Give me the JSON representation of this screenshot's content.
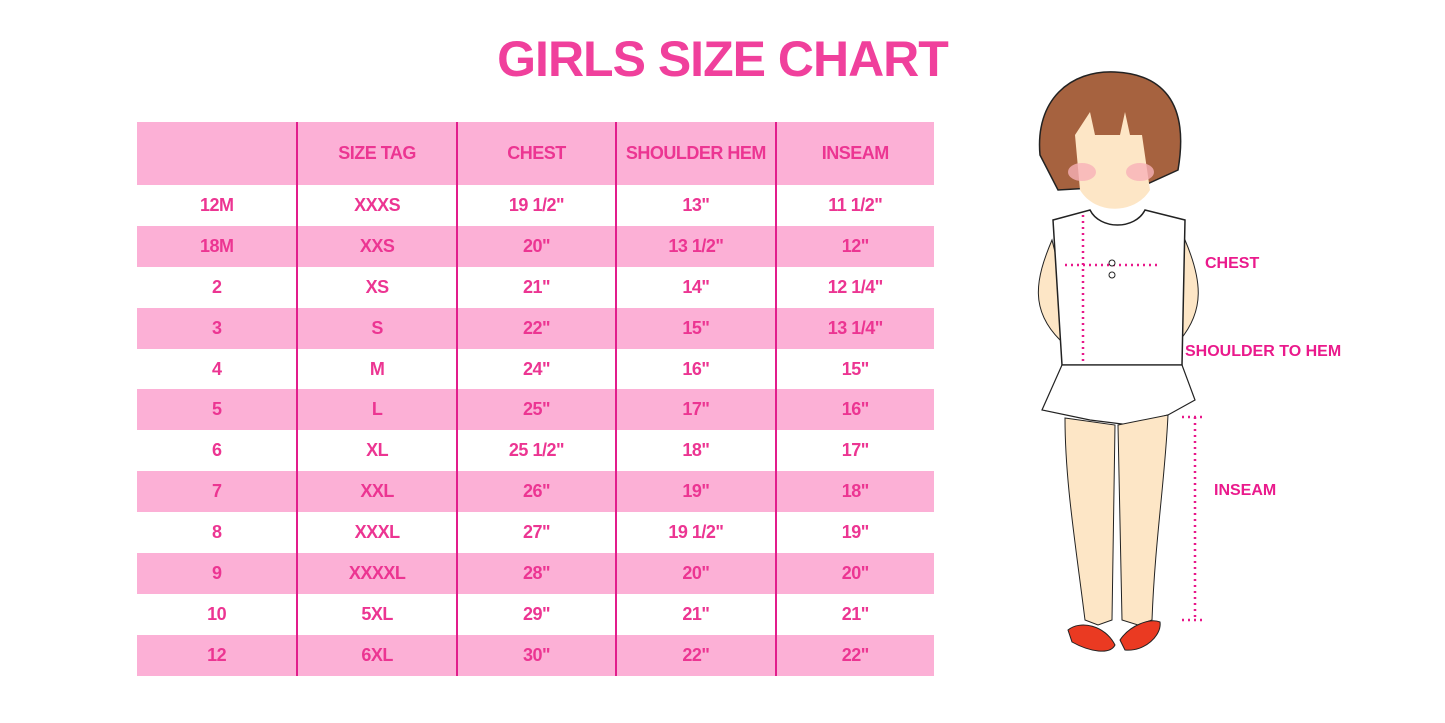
{
  "title": "GIRLS SIZE CHART",
  "table": {
    "headers": [
      "",
      "SIZE TAG",
      "CHEST",
      "SHOULDER HEM",
      "INSEAM"
    ],
    "rows": [
      [
        "12M",
        "XXXS",
        "19 1/2\"",
        "13\"",
        "11 1/2\""
      ],
      [
        "18M",
        "XXS",
        "20\"",
        "13 1/2\"",
        "12\""
      ],
      [
        "2",
        "XS",
        "21\"",
        "14\"",
        "12 1/4\""
      ],
      [
        "3",
        "S",
        "22\"",
        "15\"",
        "13 1/4\""
      ],
      [
        "4",
        "M",
        "24\"",
        "16\"",
        "15\""
      ],
      [
        "5",
        "L",
        "25\"",
        "17\"",
        "16\""
      ],
      [
        "6",
        "XL",
        "25 1/2\"",
        "18\"",
        "17\""
      ],
      [
        "7",
        "XXL",
        "26\"",
        "19\"",
        "18\""
      ],
      [
        "8",
        "XXXL",
        "27\"",
        "19 1/2\"",
        "19\""
      ],
      [
        "9",
        "XXXXL",
        "28\"",
        "20\"",
        "20\""
      ],
      [
        "10",
        "5XL",
        "29\"",
        "21\"",
        "21\""
      ],
      [
        "12",
        "6XL",
        "30\"",
        "22\"",
        "22\""
      ]
    ]
  },
  "illustration": {
    "labels": {
      "chest": "CHEST",
      "shoulder_to_hem": "SHOULDER TO HEM",
      "inseam": "INSEAM"
    }
  },
  "colors": {
    "accent": "#ec3592",
    "row_pink": "#fcb0d6",
    "divider": "#e21d8c"
  }
}
